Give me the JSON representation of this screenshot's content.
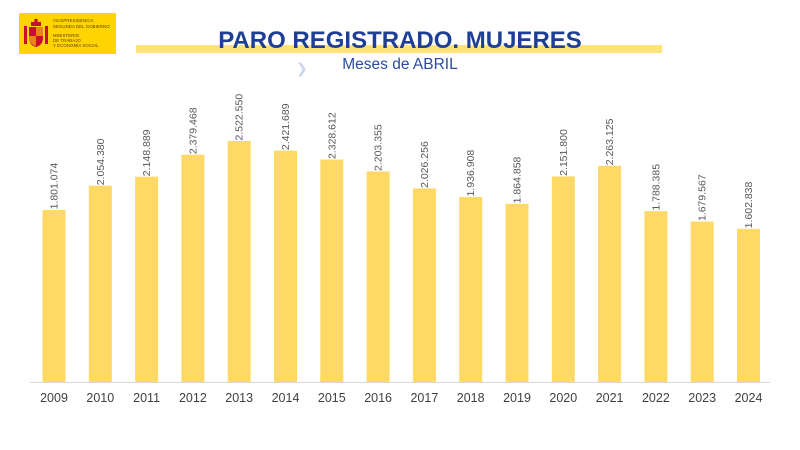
{
  "header": {
    "logo": {
      "line1": "VICEPRESIDENCIA",
      "line2": "SEGUNDA DEL GOBIERNO",
      "line3": "MINISTERIO",
      "line4": "DE TRABAJO",
      "line5": "Y ECONOMÍA SOCIAL"
    }
  },
  "colors": {
    "bar": "#ffd966",
    "title": "#1f3f96",
    "logo_bg": "#ffd400",
    "axis": "#d9d9d9"
  },
  "chart_data": {
    "type": "bar",
    "title": "PARO REGISTRADO. MUJERES",
    "subtitle": "Meses de ABRIL",
    "categories": [
      "2009",
      "2010",
      "2011",
      "2012",
      "2013",
      "2014",
      "2015",
      "2016",
      "2017",
      "2018",
      "2019",
      "2020",
      "2021",
      "2022",
      "2023",
      "2024"
    ],
    "values": [
      1801074,
      2054380,
      2148889,
      2379468,
      2522550,
      2421689,
      2328612,
      2203355,
      2026256,
      1936908,
      1864858,
      2151800,
      2263125,
      1788385,
      1679567,
      1602838
    ],
    "value_labels": [
      "1.801.074",
      "2.054.380",
      "2.148.889",
      "2.379.468",
      "2.522.550",
      "2.421.689",
      "2.328.612",
      "2.203.355",
      "2.026.256",
      "1.936.908",
      "1.864.858",
      "2.151.800",
      "2.263.125",
      "1.788.385",
      "1.679.567",
      "1.602.838"
    ],
    "xlabel": "",
    "ylabel": "",
    "ylim": [
      0,
      2522550
    ],
    "grid": false,
    "legend": "none"
  }
}
